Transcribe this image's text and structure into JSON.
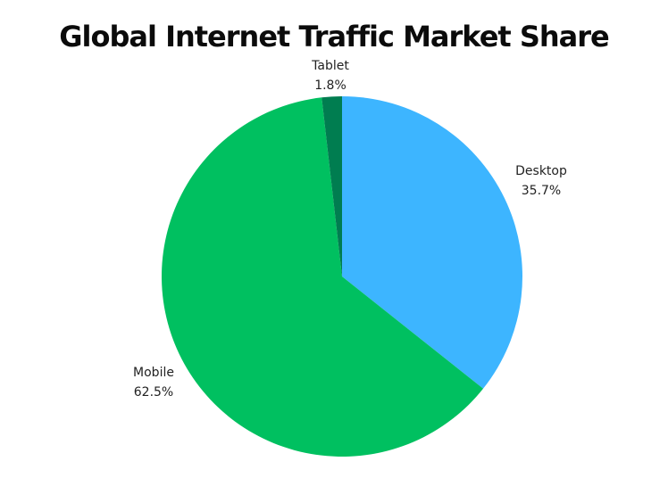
{
  "chart_data": {
    "type": "pie",
    "title": "Global Internet Traffic Market Share",
    "slices": [
      {
        "label": "Desktop",
        "value": 35.7,
        "value_text": "35.7%",
        "color": "#3db5ff"
      },
      {
        "label": "Mobile",
        "value": 62.5,
        "value_text": "62.5%",
        "color": "#00c060"
      },
      {
        "label": "Tablet",
        "value": 1.8,
        "value_text": "1.8%",
        "color": "#007d50"
      }
    ],
    "start_angle": "12 o'clock",
    "direction": "clockwise",
    "legend": "none",
    "labels": "outside slices"
  }
}
